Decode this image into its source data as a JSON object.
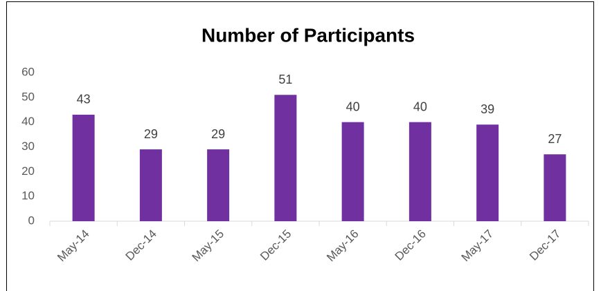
{
  "chart_data": {
    "type": "bar",
    "title": "Number of Participants",
    "categories": [
      "May-14",
      "Dec-14",
      "May-15",
      "Dec-15",
      "May-16",
      "Dec-16",
      "May-17",
      "Dec-17"
    ],
    "values": [
      43,
      29,
      29,
      51,
      40,
      40,
      39,
      27
    ],
    "color": "#7030a0",
    "ylim": [
      0,
      60
    ],
    "yticks": [
      0,
      10,
      20,
      30,
      40,
      50,
      60
    ],
    "grid": false
  }
}
